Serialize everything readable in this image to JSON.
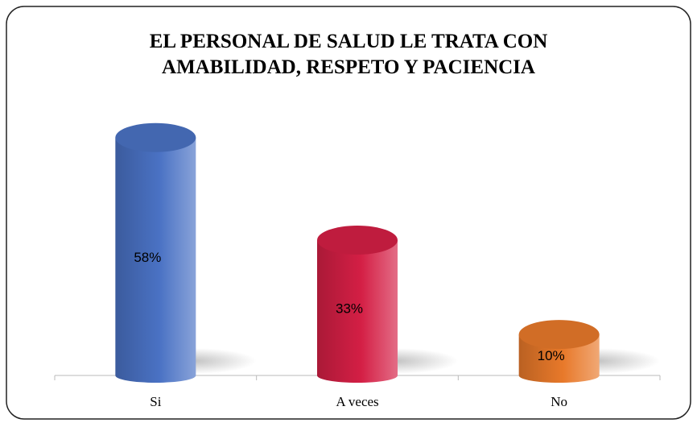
{
  "chart_data": {
    "type": "cylinder-bar",
    "title": "EL PERSONAL DE SALUD LE TRATA CON AMABILIDAD, RESPETO Y PACIENCIA",
    "categories": [
      "Si",
      "A veces",
      "No"
    ],
    "values": [
      58,
      33,
      10
    ],
    "value_labels": [
      "58%",
      "33%",
      "10%"
    ],
    "colors": [
      "#4a72c4",
      "#d41f45",
      "#e8792a"
    ]
  }
}
